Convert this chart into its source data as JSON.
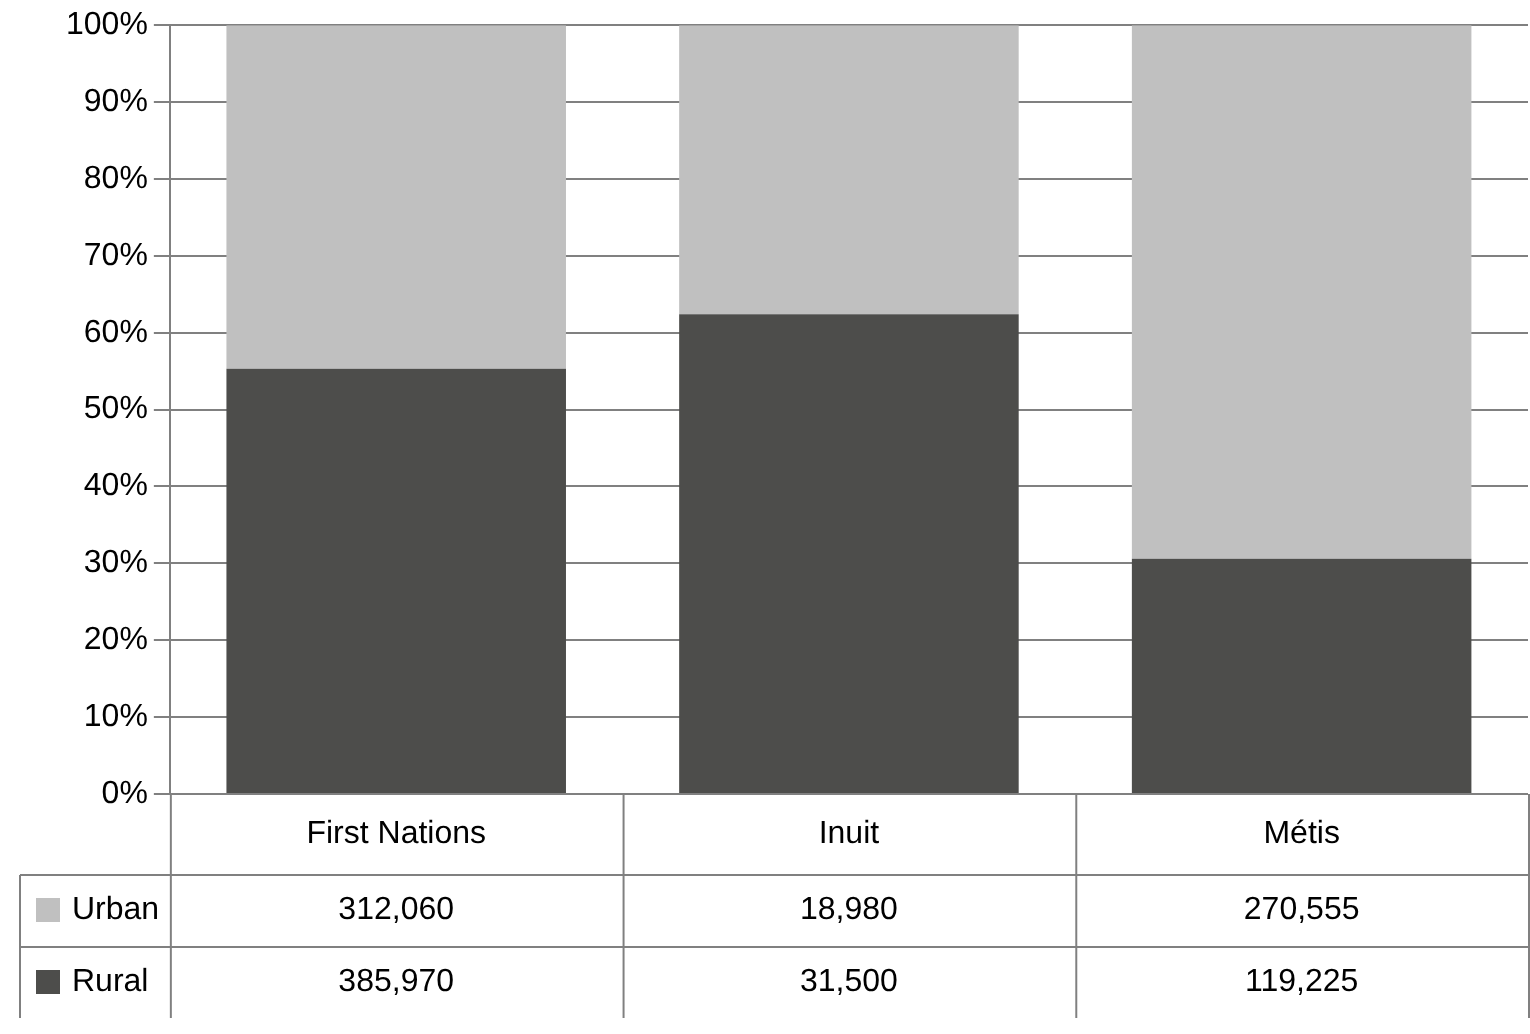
{
  "chart_data": {
    "type": "bar",
    "stacked": true,
    "categories": [
      "First Nations",
      "Inuit",
      "Métis"
    ],
    "series": [
      {
        "name": "Rural",
        "color": "#4d4d4b",
        "values": [
          55.3,
          62.4,
          30.6
        ]
      },
      {
        "name": "Urban",
        "color": "#c0c0c0",
        "values": [
          44.7,
          37.6,
          69.4
        ]
      }
    ],
    "annotations": [
      "312,060",
      "18,980",
      "270,555",
      "385,970",
      "31,500",
      "119,225"
    ],
    "ylim": [
      0,
      100
    ],
    "yticks": [
      {
        "value": 0,
        "label": "0%"
      },
      {
        "value": 10,
        "label": "10%"
      },
      {
        "value": 20,
        "label": "20%"
      },
      {
        "value": 30,
        "label": "30%"
      },
      {
        "value": 40,
        "label": "40%"
      },
      {
        "value": 50,
        "label": "50%"
      },
      {
        "value": 60,
        "label": "60%"
      },
      {
        "value": 70,
        "label": "70%"
      },
      {
        "value": 80,
        "label": "80%"
      },
      {
        "value": 90,
        "label": "90%"
      },
      {
        "value": 100,
        "label": "100%"
      }
    ],
    "grid": "y",
    "legend": "bottom"
  }
}
